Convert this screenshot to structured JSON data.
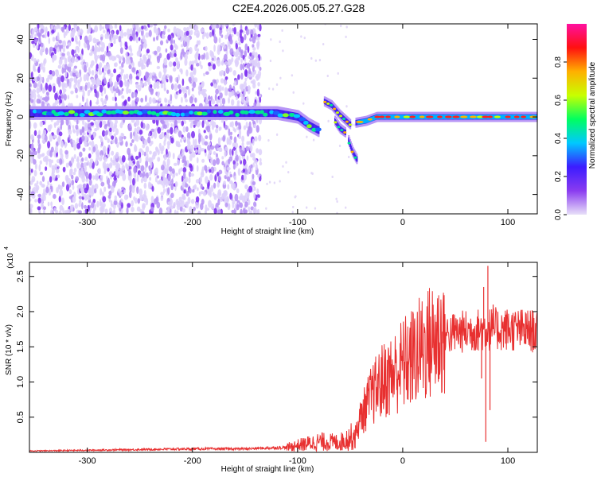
{
  "title": "C2E4.2026.005.05.27.G28",
  "chart_data": [
    {
      "type": "heatmap",
      "xlabel": "Height of straight line (km)",
      "ylabel": "Frequency (Hz)",
      "xlim": [
        -355,
        128
      ],
      "ylim": [
        -50,
        48
      ],
      "xticks": [
        -300,
        -200,
        -100,
        0,
        100
      ],
      "yticks": [
        -40,
        -20,
        0,
        20,
        40
      ],
      "colorbar": {
        "label": "Normalized spectral amplitude",
        "range": [
          0,
          1
        ],
        "ticks": [
          "0.0",
          "0.2",
          "0.4",
          "0.6",
          "0.8"
        ],
        "colors": [
          "#e8e0f8",
          "#8a3cf0",
          "#3c1cff",
          "#00c8ff",
          "#00ff60",
          "#c8ff00",
          "#ffb000",
          "#ff1010",
          "#ff10a0"
        ]
      },
      "noise_x_range": [
        -355,
        -135
      ],
      "main_trace": [
        {
          "x": -355,
          "f": 2,
          "amp": 0.35
        },
        {
          "x": -300,
          "f": 2,
          "amp": 0.4
        },
        {
          "x": -250,
          "f": 2,
          "amp": 0.4
        },
        {
          "x": -200,
          "f": 2,
          "amp": 0.45
        },
        {
          "x": -150,
          "f": 2,
          "amp": 0.4
        },
        {
          "x": -120,
          "f": 2,
          "amp": 0.45
        },
        {
          "x": -100,
          "f": 0,
          "amp": 0.55
        },
        {
          "x": -90,
          "f": -4,
          "amp": 0.65
        },
        {
          "x": -80,
          "f": -7,
          "amp": 0.7
        }
      ],
      "branches": [
        [
          {
            "x": -75,
            "f": 8
          },
          {
            "x": -68,
            "f": 6
          },
          {
            "x": -60,
            "f": 1
          },
          {
            "x": -50,
            "f": -4
          }
        ],
        [
          {
            "x": -65,
            "f": -2
          },
          {
            "x": -60,
            "f": -6
          },
          {
            "x": -55,
            "f": -8
          }
        ],
        [
          {
            "x": -52,
            "f": -12
          },
          {
            "x": -48,
            "f": -18
          },
          {
            "x": -44,
            "f": -22
          }
        ],
        [
          {
            "x": -45,
            "f": -3
          },
          {
            "x": -35,
            "f": -2
          },
          {
            "x": -25,
            "f": 0
          },
          {
            "x": -10,
            "f": 0
          },
          {
            "x": 0,
            "f": 0
          },
          {
            "x": 50,
            "f": 0
          },
          {
            "x": 100,
            "f": 0
          },
          {
            "x": 128,
            "f": 0
          }
        ]
      ]
    },
    {
      "type": "line",
      "xlabel": "Height of straight line (km)",
      "ylabel": "SNR (10 * v/v)",
      "y_multiplier": "(x10",
      "y_multiplier_exp": "4",
      "xlim": [
        -355,
        128
      ],
      "ylim": [
        0,
        2.7
      ],
      "xticks": [
        -300,
        -200,
        -100,
        0,
        100
      ],
      "yticks": [
        "0.5",
        "1.0",
        "1.5",
        "2.0",
        "2.5"
      ],
      "series": [
        {
          "color": "#e83030",
          "envelope": [
            {
              "x": -355,
              "y": 0.02
            },
            {
              "x": -300,
              "y": 0.03
            },
            {
              "x": -250,
              "y": 0.04
            },
            {
              "x": -200,
              "y": 0.05
            },
            {
              "x": -150,
              "y": 0.05
            },
            {
              "x": -110,
              "y": 0.07
            },
            {
              "x": -100,
              "y": 0.1
            },
            {
              "x": -80,
              "y": 0.15
            },
            {
              "x": -60,
              "y": 0.14
            },
            {
              "x": -45,
              "y": 0.25
            },
            {
              "x": -40,
              "y": 0.5
            },
            {
              "x": -30,
              "y": 0.8
            },
            {
              "x": -20,
              "y": 1.0
            },
            {
              "x": -10,
              "y": 1.1
            },
            {
              "x": 0,
              "y": 1.25
            },
            {
              "x": 10,
              "y": 1.35
            },
            {
              "x": 20,
              "y": 1.5
            },
            {
              "x": 30,
              "y": 1.6
            },
            {
              "x": 40,
              "y": 1.68
            },
            {
              "x": 60,
              "y": 1.72
            },
            {
              "x": 80,
              "y": 1.75
            },
            {
              "x": 100,
              "y": 1.75
            },
            {
              "x": 128,
              "y": 1.72
            }
          ],
          "spikes": [
            {
              "x": 77,
              "y": 2.35
            },
            {
              "x": 79,
              "y": 0.15
            },
            {
              "x": 81,
              "y": 2.65
            },
            {
              "x": 83,
              "y": 0.6
            },
            {
              "x": 86,
              "y": 2.1
            },
            {
              "x": 75,
              "y": 1.05
            }
          ]
        }
      ]
    }
  ]
}
